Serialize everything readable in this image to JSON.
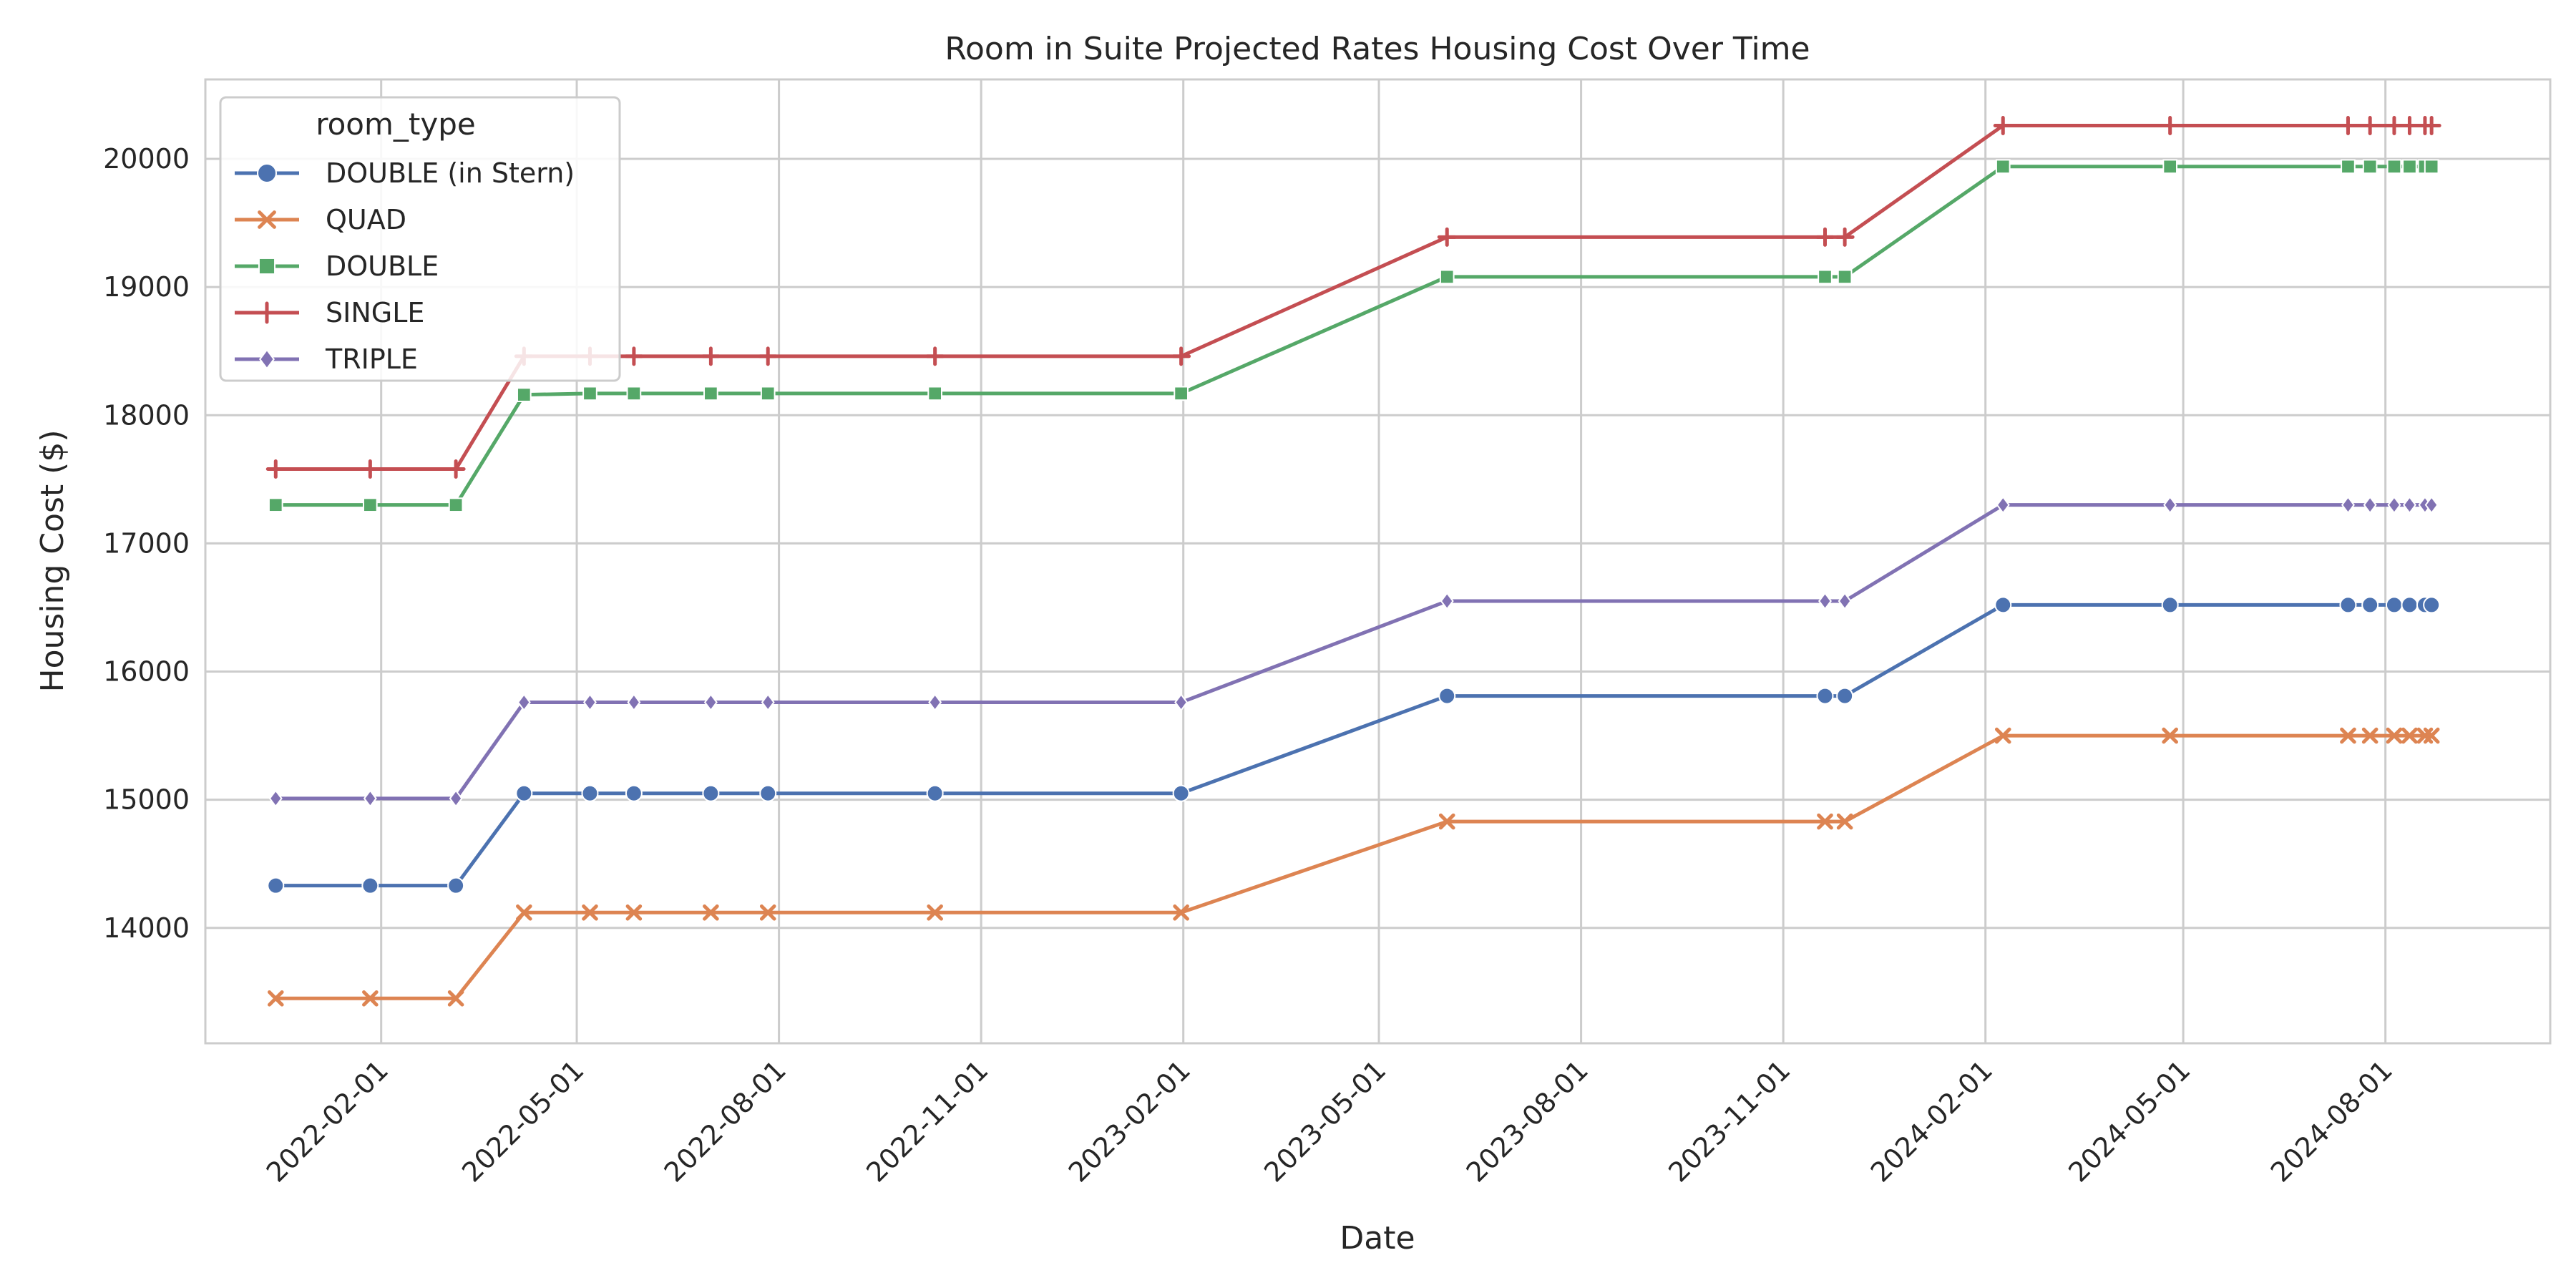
{
  "chart_data": {
    "type": "line",
    "title": "Room in Suite Projected Rates Housing Cost Over Time",
    "xlabel": "Date",
    "ylabel": "Housing Cost ($)",
    "x_ticks": [
      "2022-02-01",
      "2022-05-01",
      "2022-08-01",
      "2022-11-01",
      "2023-02-01",
      "2023-05-01",
      "2023-08-01",
      "2023-11-01",
      "2024-02-01",
      "2024-05-01",
      "2024-08-01"
    ],
    "y_ticks": [
      14000,
      15000,
      16000,
      17000,
      18000,
      19000,
      20000
    ],
    "xlim": [
      "2021-11-13",
      "2024-10-15"
    ],
    "ylim": [
      13100,
      20620
    ],
    "grid": true,
    "legend_title": "room_type",
    "legend_position": "top-left",
    "x": [
      "2021-12-15",
      "2022-01-27",
      "2022-03-07",
      "2022-04-07",
      "2022-05-07",
      "2022-05-27",
      "2022-07-01",
      "2022-07-27",
      "2022-10-11",
      "2023-01-31",
      "2023-06-01",
      "2023-11-20",
      "2023-11-29",
      "2024-02-09",
      "2024-04-25",
      "2024-07-15",
      "2024-07-25",
      "2024-08-05",
      "2024-08-12",
      "2024-08-19",
      "2024-08-22"
    ],
    "series": [
      {
        "name": "DOUBLE (in Stern)",
        "color": "#4c72b0",
        "marker": "circle",
        "values": [
          14330,
          14330,
          14330,
          15050,
          15050,
          15050,
          15050,
          15050,
          15050,
          15050,
          15810,
          15810,
          15810,
          16520,
          16520,
          16520,
          16520,
          16520,
          16520,
          16520,
          16520
        ]
      },
      {
        "name": "QUAD",
        "color": "#dd8452",
        "marker": "x",
        "values": [
          13450,
          13450,
          13450,
          14120,
          14120,
          14120,
          14120,
          14120,
          14120,
          14120,
          14830,
          14830,
          14830,
          15500,
          15500,
          15500,
          15500,
          15500,
          15500,
          15500,
          15500
        ]
      },
      {
        "name": "DOUBLE",
        "color": "#55a868",
        "marker": "square",
        "values": [
          17300,
          17300,
          17300,
          18160,
          18170,
          18170,
          18170,
          18170,
          18170,
          18170,
          19080,
          19080,
          19080,
          19940,
          19940,
          19940,
          19940,
          19940,
          19940,
          19940,
          19940
        ]
      },
      {
        "name": "SINGLE",
        "color": "#c44e52",
        "marker": "plus",
        "values": [
          17580,
          17580,
          17580,
          18460,
          18460,
          18460,
          18460,
          18460,
          18460,
          18460,
          19390,
          19390,
          19390,
          20260,
          20260,
          20260,
          20260,
          20260,
          20260,
          20260,
          20260
        ]
      },
      {
        "name": "TRIPLE",
        "color": "#8172b3",
        "marker": "diamond",
        "values": [
          15010,
          15010,
          15010,
          15760,
          15760,
          15760,
          15760,
          15760,
          15760,
          15760,
          16550,
          16550,
          16550,
          17300,
          17300,
          17300,
          17300,
          17300,
          17300,
          17300,
          17300
        ]
      }
    ]
  }
}
